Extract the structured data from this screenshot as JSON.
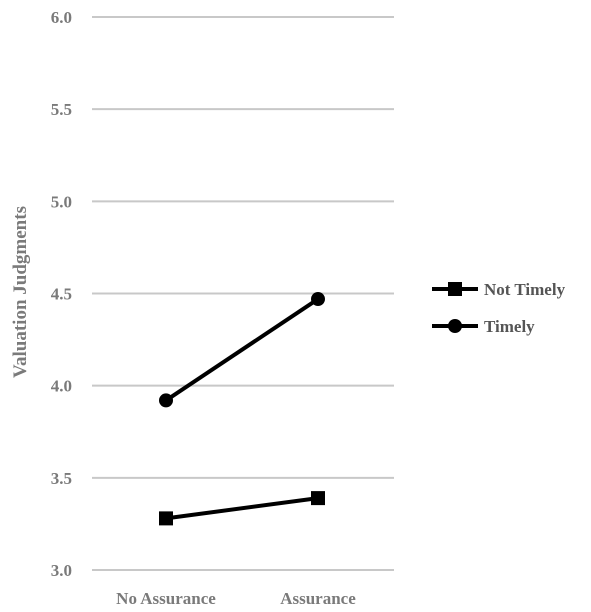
{
  "chart_data": {
    "type": "line",
    "title": "",
    "xlabel": "",
    "ylabel": "Valuation Judgments",
    "categories": [
      "No Assurance",
      "Assurance"
    ],
    "ylim": [
      3.0,
      6.0
    ],
    "yticks": [
      "3.0",
      "3.5",
      "4.0",
      "4.5",
      "5.0",
      "5.5",
      "6.0"
    ],
    "grid": true,
    "legend_position": "right",
    "series": [
      {
        "name": "Not Timely",
        "marker": "square",
        "color": "#000000",
        "values": [
          3.28,
          3.39
        ]
      },
      {
        "name": "Timely",
        "marker": "circle",
        "color": "#000000",
        "values": [
          3.92,
          4.47
        ]
      }
    ]
  }
}
